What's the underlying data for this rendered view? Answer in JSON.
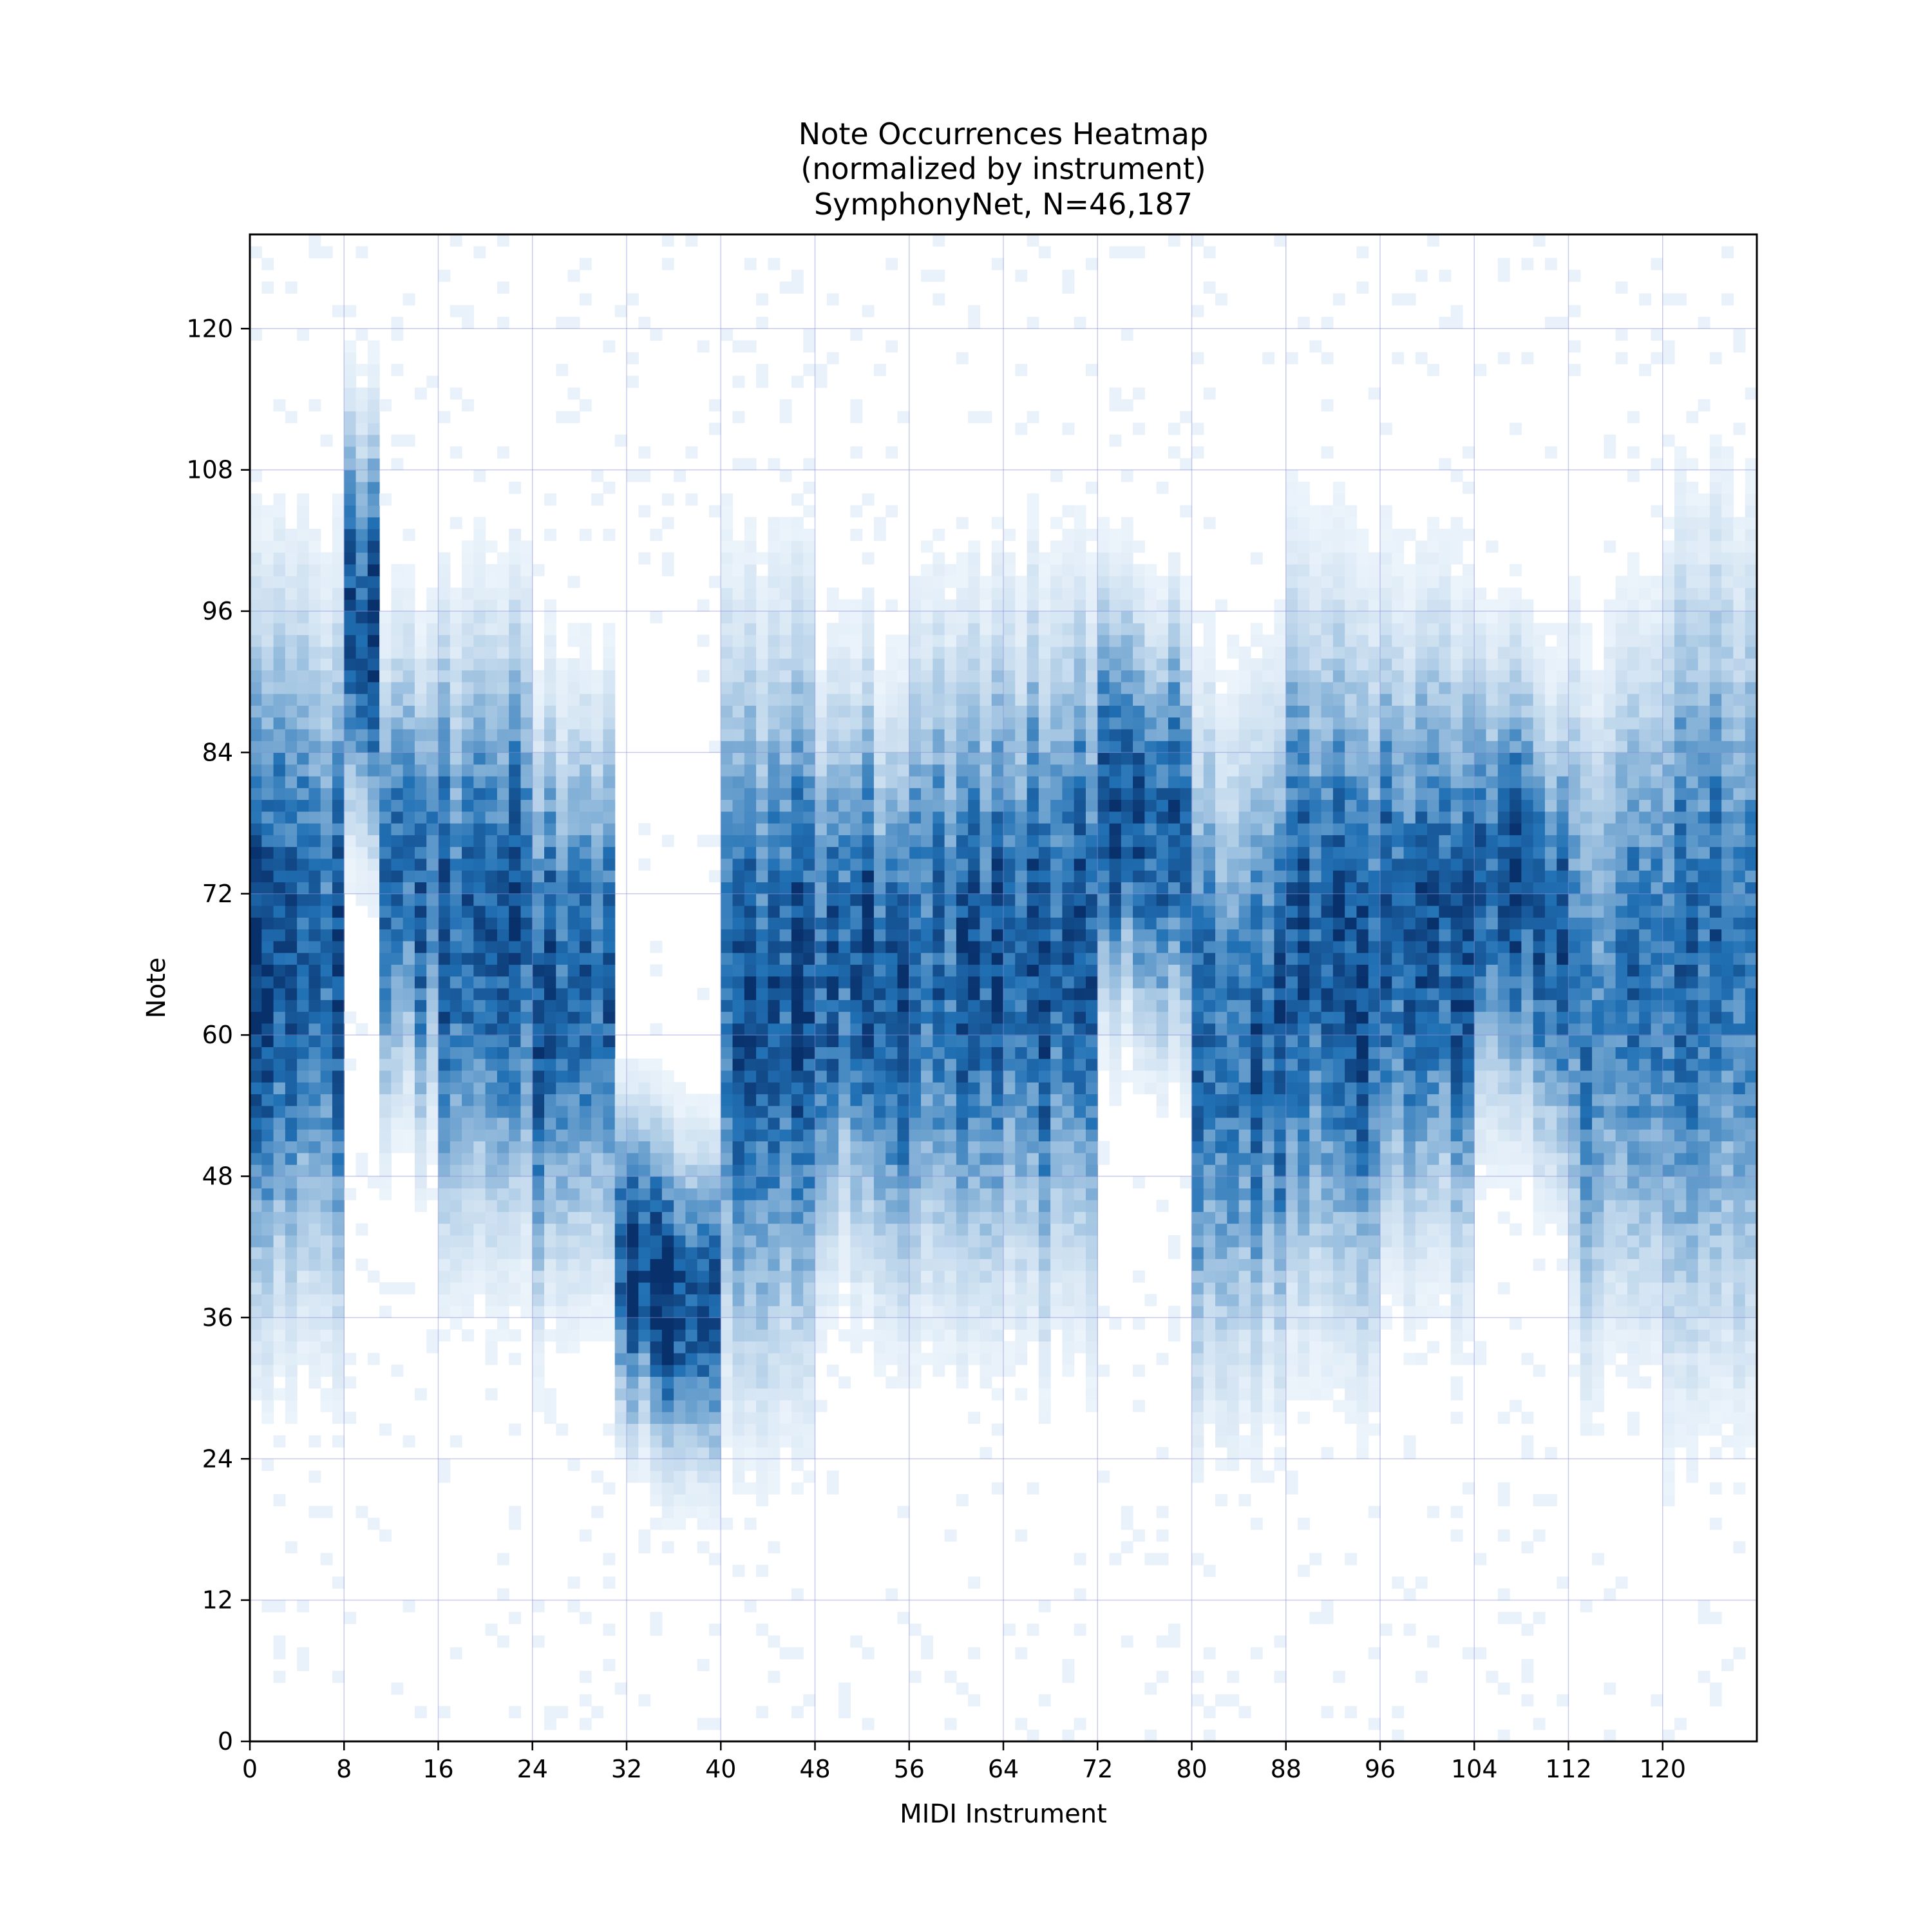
{
  "chart_data": {
    "type": "heatmap",
    "title_lines": [
      "Note Occurrences Heatmap",
      "(normalized by instrument)",
      "SymphonyNet, N=46,187"
    ],
    "xlabel": "MIDI Instrument",
    "ylabel": "Note",
    "x_ticks": [
      "0",
      "8",
      "16",
      "24",
      "32",
      "40",
      "48",
      "56",
      "64",
      "72",
      "80",
      "88",
      "96",
      "104",
      "112",
      "120"
    ],
    "y_ticks": [
      "0",
      "12",
      "24",
      "36",
      "48",
      "60",
      "72",
      "84",
      "96",
      "108",
      "120"
    ],
    "xlim": [
      0,
      128
    ],
    "ylim": [
      0,
      128
    ],
    "grid": true,
    "colormap": "Blues",
    "color_low": "#f7fbff",
    "color_high": "#08306b",
    "grid_color": "#8a8fd8",
    "instrument_profiles": [
      {
        "x_range": [
          0,
          8
        ],
        "note_center": 66,
        "note_spread": 15,
        "intensity": 0.78
      },
      {
        "x_range": [
          8,
          11
        ],
        "note_center": 95,
        "note_spread": 9,
        "intensity": 0.9
      },
      {
        "x_range": [
          11,
          16
        ],
        "note_center": 72,
        "note_spread": 10,
        "intensity": 0.7
      },
      {
        "x_range": [
          16,
          24
        ],
        "note_center": 68,
        "note_spread": 13,
        "intensity": 0.75
      },
      {
        "x_range": [
          24,
          31
        ],
        "note_center": 62,
        "note_spread": 12,
        "intensity": 0.72
      },
      {
        "x_range": [
          31,
          40
        ],
        "note_center": 38,
        "note_spread": 7,
        "intensity": 0.88
      },
      {
        "x_range": [
          40,
          48
        ],
        "note_center": 62,
        "note_spread": 16,
        "intensity": 0.8
      },
      {
        "x_range": [
          48,
          56
        ],
        "note_center": 64,
        "note_spread": 12,
        "intensity": 0.78
      },
      {
        "x_range": [
          56,
          64
        ],
        "note_center": 64,
        "note_spread": 14,
        "intensity": 0.72
      },
      {
        "x_range": [
          64,
          72
        ],
        "note_center": 66,
        "note_spread": 14,
        "intensity": 0.72
      },
      {
        "x_range": [
          72,
          80
        ],
        "note_center": 78,
        "note_spread": 9,
        "intensity": 0.82
      },
      {
        "x_range": [
          80,
          88
        ],
        "note_center": 58,
        "note_spread": 14,
        "intensity": 0.74
      },
      {
        "x_range": [
          88,
          96
        ],
        "note_center": 66,
        "note_spread": 15,
        "intensity": 0.75
      },
      {
        "x_range": [
          96,
          104
        ],
        "note_center": 68,
        "note_spread": 13,
        "intensity": 0.72
      },
      {
        "x_range": [
          104,
          112
        ],
        "note_center": 70,
        "note_spread": 10,
        "intensity": 0.78
      },
      {
        "x_range": [
          112,
          120
        ],
        "note_center": 62,
        "note_spread": 14,
        "intensity": 0.6
      },
      {
        "x_range": [
          120,
          128
        ],
        "note_center": 66,
        "note_spread": 17,
        "intensity": 0.62
      }
    ]
  }
}
